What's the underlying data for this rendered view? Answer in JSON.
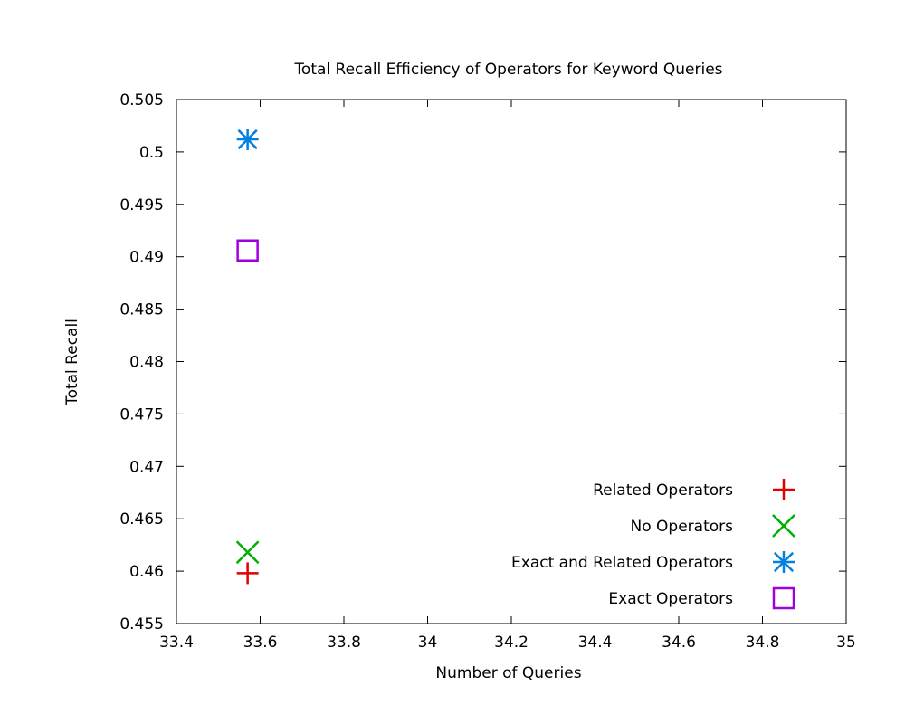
{
  "chart_data": {
    "type": "scatter",
    "title": "Total Recall Efficiency of Operators for Keyword Queries",
    "xlabel": "Number of Queries",
    "ylabel": "Total Recall",
    "xlim": [
      33.4,
      35
    ],
    "ylim": [
      0.455,
      0.505
    ],
    "x_ticks": [
      33.4,
      33.6,
      33.8,
      34,
      34.2,
      34.4,
      34.6,
      34.8,
      35
    ],
    "x_tick_labels": [
      "33.4",
      "33.6",
      "33.8",
      "34",
      "34.2",
      "34.4",
      "34.6",
      "34.8",
      "35"
    ],
    "y_ticks": [
      0.455,
      0.46,
      0.465,
      0.47,
      0.475,
      0.48,
      0.485,
      0.49,
      0.495,
      0.5,
      0.505
    ],
    "y_tick_labels": [
      "0.455",
      "0.46",
      "0.465",
      "0.47",
      "0.475",
      "0.48",
      "0.485",
      "0.49",
      "0.495",
      "0.5",
      "0.505"
    ],
    "grid": false,
    "legend_position": "bottom-right",
    "series": [
      {
        "name": "Related Operators",
        "marker": "plus",
        "color": "#e00000",
        "points": [
          {
            "x": 33.57,
            "y": 0.4598
          }
        ]
      },
      {
        "name": "No Operators",
        "marker": "cross",
        "color": "#00b000",
        "points": [
          {
            "x": 33.57,
            "y": 0.4618
          }
        ]
      },
      {
        "name": "Exact and Related Operators",
        "marker": "asterisk",
        "color": "#0080e0",
        "points": [
          {
            "x": 33.57,
            "y": 0.5012
          }
        ]
      },
      {
        "name": "Exact Operators",
        "marker": "square",
        "color": "#a000e0",
        "points": [
          {
            "x": 33.57,
            "y": 0.4906
          }
        ]
      }
    ]
  }
}
